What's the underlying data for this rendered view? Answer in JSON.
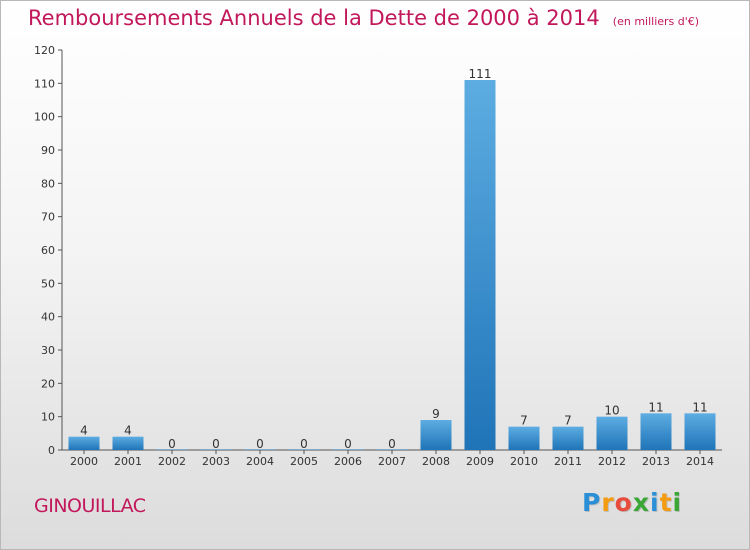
{
  "chart_data": {
    "type": "bar",
    "title": "Remboursements Annuels de la Dette de 2000 à 2014",
    "subtitle": "(en milliers d'€)",
    "categories": [
      "2000",
      "2001",
      "2002",
      "2003",
      "2004",
      "2005",
      "2006",
      "2007",
      "2008",
      "2009",
      "2010",
      "2011",
      "2012",
      "2013",
      "2014"
    ],
    "values": [
      4,
      4,
      0,
      0,
      0,
      0,
      0,
      0,
      9,
      111,
      7,
      7,
      10,
      11,
      11
    ],
    "ylim": [
      0,
      120
    ],
    "yticks": [
      0,
      10,
      20,
      30,
      40,
      50,
      60,
      70,
      80,
      90,
      100,
      110,
      120
    ],
    "grid": false,
    "xlabel": "",
    "ylabel": ""
  },
  "commune": "GINOUILLAC",
  "logo": {
    "letters": [
      "P",
      "r",
      "o",
      "x",
      "i",
      "t",
      "i"
    ],
    "colors": [
      "#2a8fd6",
      "#f39c12",
      "#e74c3c",
      "#3aa635",
      "#2a8fd6",
      "#f39c12",
      "#3aa635"
    ]
  },
  "colors": {
    "title": "#c2185b",
    "bar_light": "#5dade2",
    "bar_dark": "#1f74b8"
  }
}
